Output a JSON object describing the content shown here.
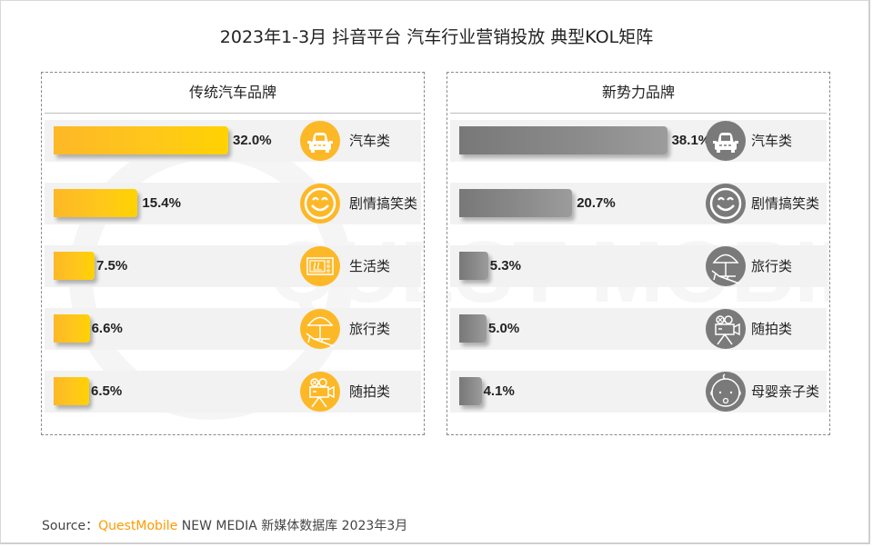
{
  "title": "2023年1-3月 抖音平台 汽车行业营销投放 典型KOL矩阵",
  "watermark": "QUEST MOBILE",
  "source": {
    "prefix": "Source：",
    "brand": "QuestMobile",
    "suffix": " NEW MEDIA 新媒体数据库 2023年3月"
  },
  "colors": {
    "traditional_bar": "#ffc81a",
    "traditional_icon": "#fdb827",
    "new_force_bar": "#8c8c8c",
    "new_force_icon": "#7a7a7a"
  },
  "chart_data": [
    {
      "type": "bar",
      "orientation": "horizontal",
      "title": "传统汽车品牌",
      "unit": "%",
      "xlim": [
        0,
        40
      ],
      "categories": [
        "汽车类",
        "剧情搞笑类",
        "生活类",
        "旅行类",
        "随拍类"
      ],
      "values": [
        32.0,
        15.4,
        7.5,
        6.6,
        6.5
      ],
      "labels": [
        "32.0%",
        "15.4%",
        "7.5%",
        "6.6%",
        "6.5%"
      ],
      "icons": [
        "car-icon",
        "smiley-icon",
        "microwave-icon",
        "beach-umbrella-icon",
        "movie-camera-icon"
      ]
    },
    {
      "type": "bar",
      "orientation": "horizontal",
      "title": "新势力品牌",
      "unit": "%",
      "xlim": [
        0,
        40
      ],
      "categories": [
        "汽车类",
        "剧情搞笑类",
        "旅行类",
        "随拍类",
        "母婴亲子类"
      ],
      "values": [
        38.1,
        20.7,
        5.3,
        5.0,
        4.1
      ],
      "labels": [
        "38.1%",
        "20.7%",
        "5.3%",
        "5.0%",
        "4.1%"
      ],
      "icons": [
        "car-icon",
        "smiley-icon",
        "beach-umbrella-icon",
        "movie-camera-icon",
        "baby-face-icon"
      ]
    }
  ]
}
